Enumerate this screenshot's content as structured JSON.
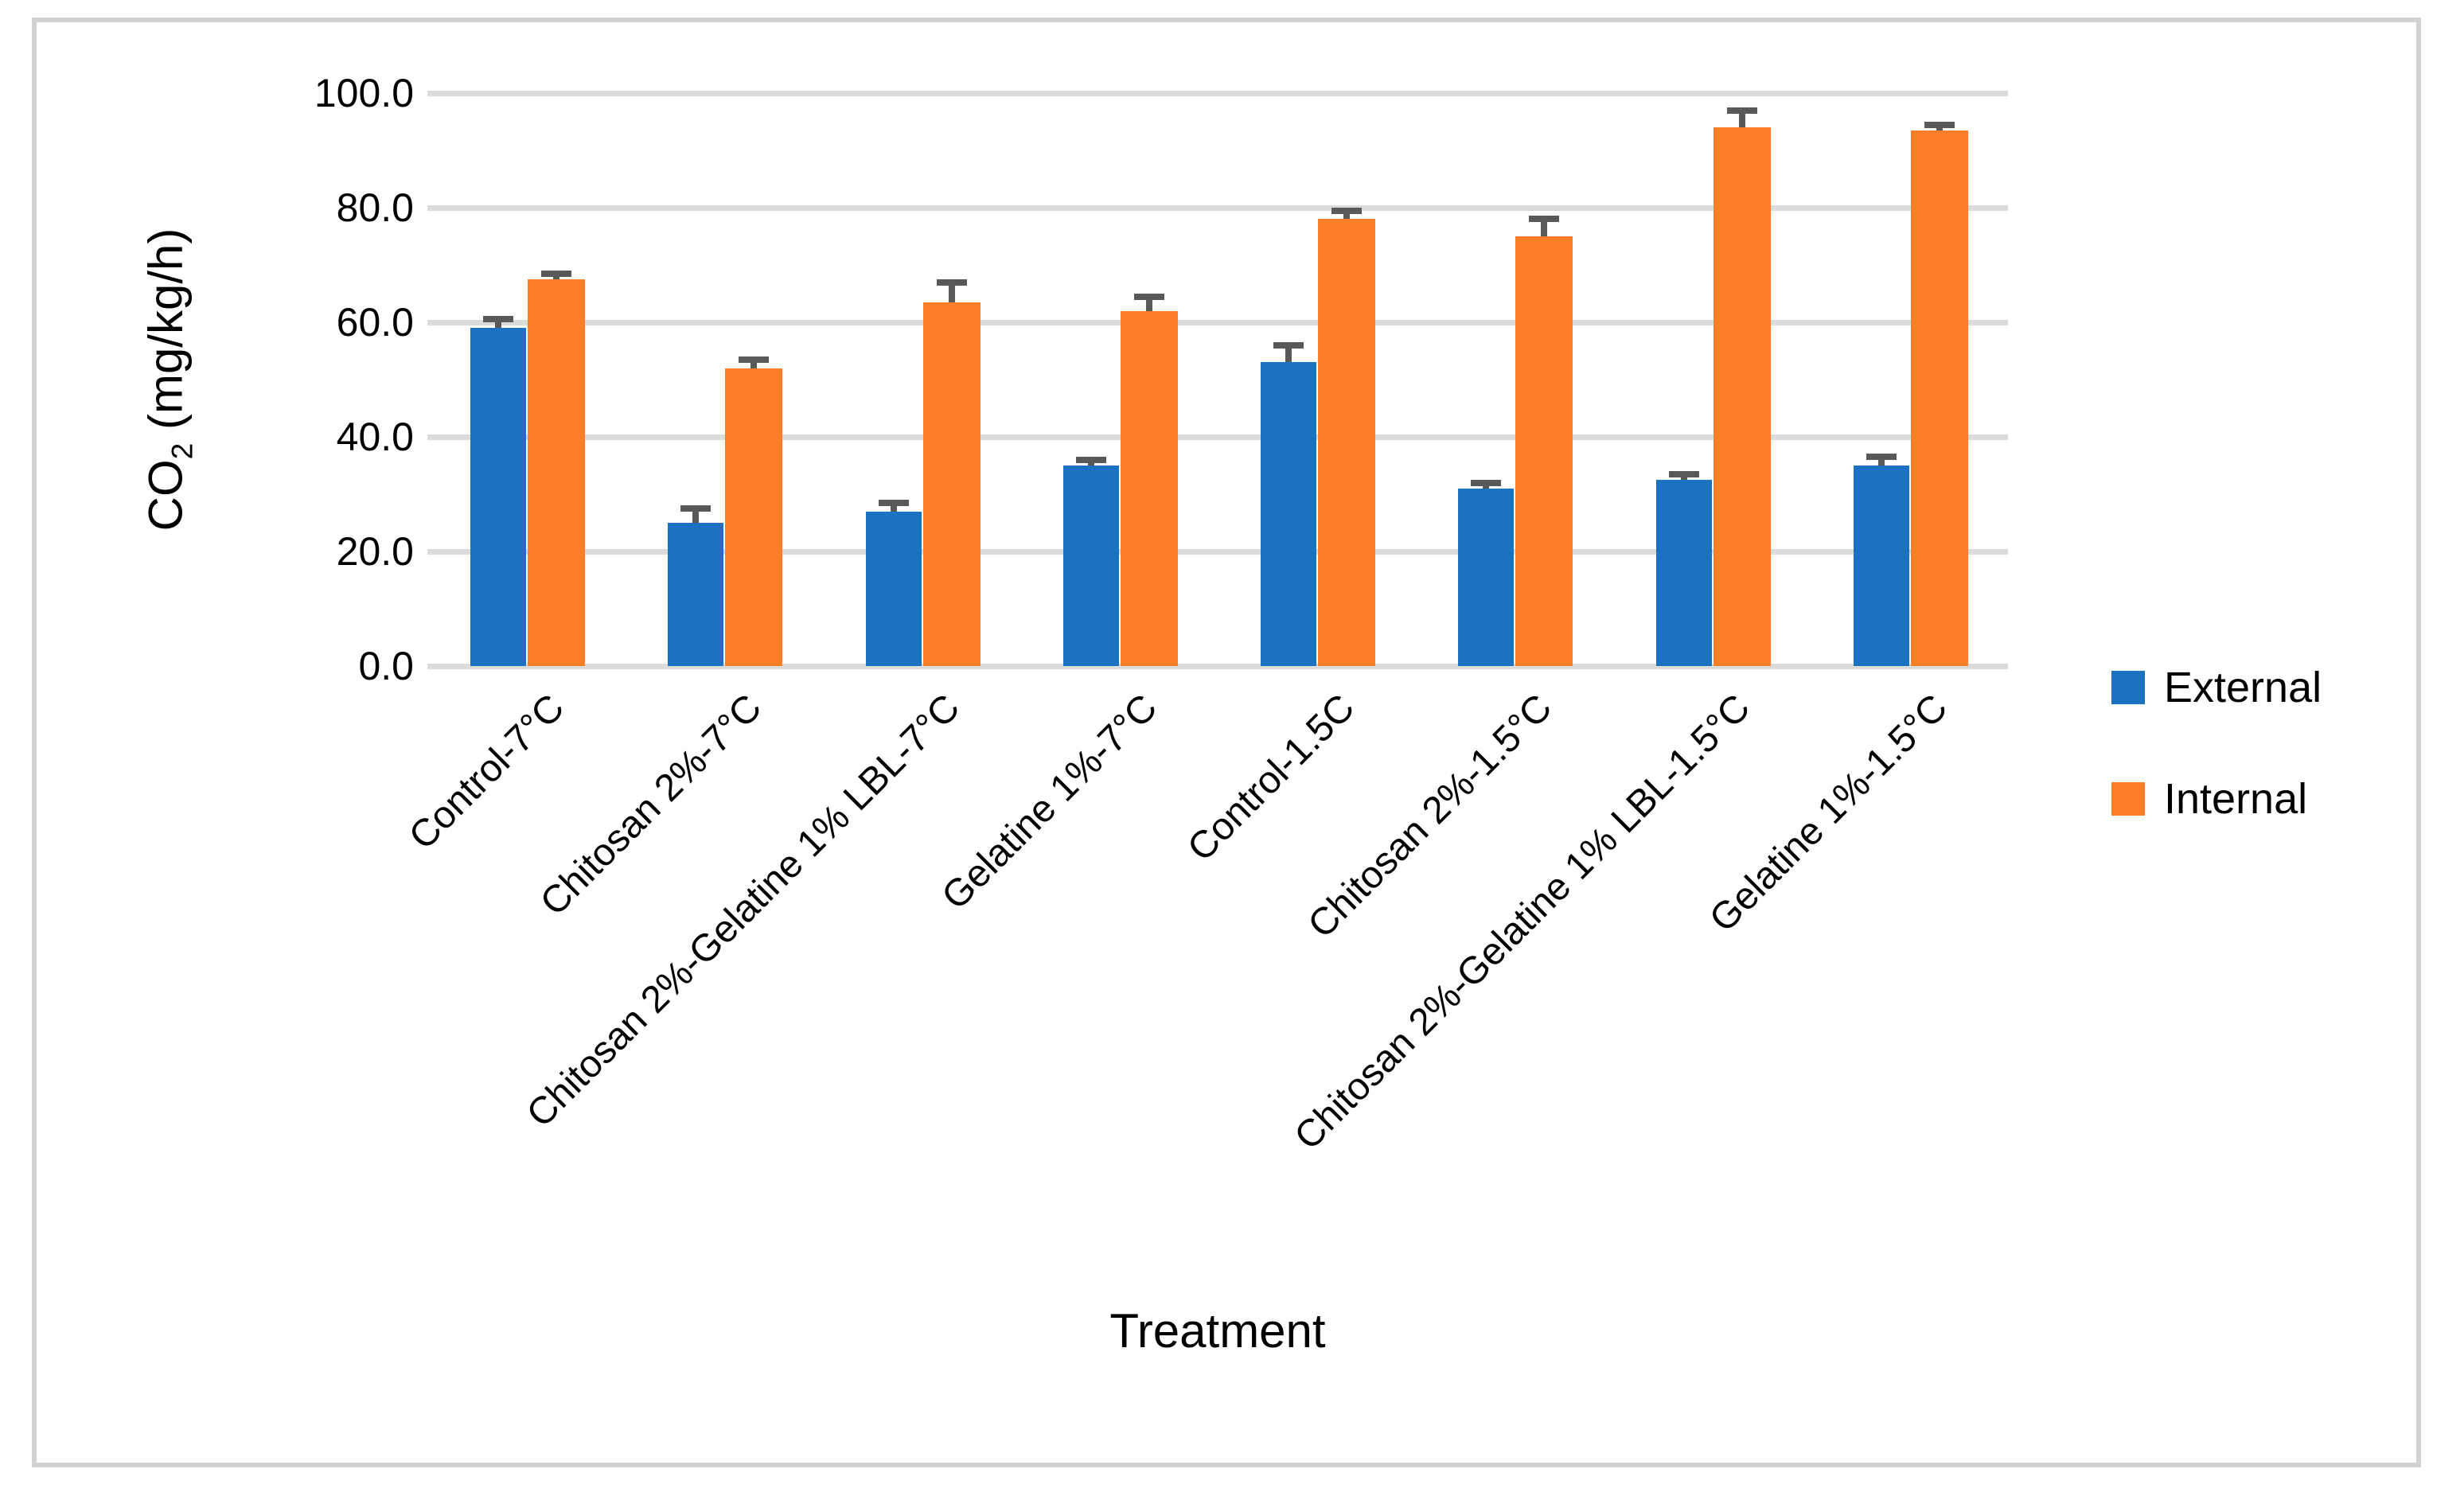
{
  "figure": {
    "background": "#FFFFFF",
    "border_color": "#D2D2D2"
  },
  "chart_data": {
    "type": "bar",
    "title": "",
    "xlabel": "Treatment",
    "y_axis": {
      "label_prefix": "CO",
      "label_sub": "2",
      "label_suffix": " (mg/kg/h)"
    },
    "ylim": [
      0,
      100
    ],
    "ytick_step": 20,
    "ytick_labels": [
      "0.0",
      "20.0",
      "40.0",
      "60.0",
      "80.0",
      "100.0"
    ],
    "grid": true,
    "gridline_color": "#DBDBDB",
    "error_bar_color": "#595959",
    "legend_position": "right",
    "categories": [
      "Control-7°C",
      "Chitosan 2%-7°C",
      "Chitosan 2%-Gelatine 1% LBL-7°C",
      "Gelatine 1%-7°C",
      "Control-1.5C",
      "Chitosan 2%-1.5°C",
      "Chitosan 2%-Gelatine 1% LBL-1.5°C",
      "Gelatine 1%-1.5°C"
    ],
    "series": [
      {
        "name": "External",
        "color": "#1B72C2",
        "values": [
          59,
          25,
          27,
          35,
          53,
          31,
          32.5,
          35
        ],
        "errors_plus": [
          1.5,
          2.5,
          1.5,
          1,
          3,
          1,
          1,
          1.5
        ]
      },
      {
        "name": "Internal",
        "color": "#FC7E26",
        "values": [
          67.5,
          52,
          63.5,
          62,
          78,
          75,
          94,
          93.5
        ],
        "errors_plus": [
          1,
          1.5,
          3.5,
          2.5,
          1.5,
          3,
          3,
          1
        ]
      }
    ]
  }
}
